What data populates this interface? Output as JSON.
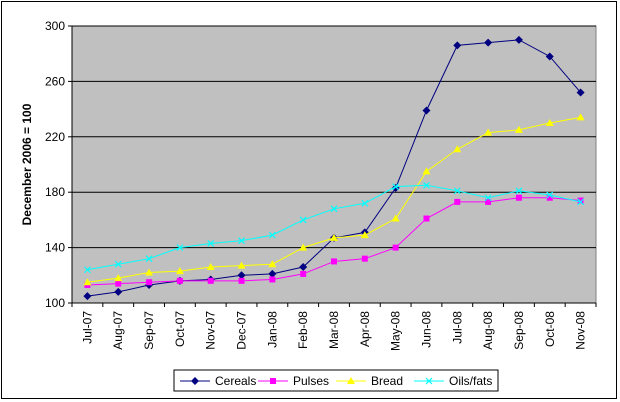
{
  "chart_data": {
    "type": "line",
    "ylabel": "December 2006 = 100",
    "xlabel": "",
    "title": "",
    "ylim": [
      100,
      300
    ],
    "yticks": [
      100,
      140,
      180,
      220,
      260,
      300
    ],
    "grid": "horizontal",
    "legend_position": "bottom",
    "plot_background": "#c0c0c0",
    "categories": [
      "Jul-07",
      "Aug-07",
      "Sep-07",
      "Oct-07",
      "Nov-07",
      "Dec-07",
      "Jan-08",
      "Feb-08",
      "Mar-08",
      "Apr-08",
      "May-08",
      "Jun-08",
      "Jul-08",
      "Aug-08",
      "Sep-08",
      "Oct-08",
      "Nov-08"
    ],
    "series": [
      {
        "name": "Cereals",
        "color": "#000080",
        "marker": "diamond",
        "values": [
          105,
          108,
          113,
          116,
          117,
          120,
          121,
          126,
          147,
          151,
          183,
          239,
          286,
          288,
          290,
          278,
          252
        ]
      },
      {
        "name": "Pulses",
        "color": "#ff00ff",
        "marker": "square",
        "values": [
          113,
          114,
          115,
          116,
          116,
          116,
          117,
          121,
          130,
          132,
          140,
          161,
          173,
          173,
          176,
          176,
          174
        ]
      },
      {
        "name": "Bread",
        "color": "#ffff00",
        "marker": "triangle",
        "values": [
          115,
          118,
          122,
          123,
          126,
          127,
          128,
          140,
          147,
          149,
          161,
          195,
          211,
          223,
          225,
          230,
          234
        ]
      },
      {
        "name": "Oils/fats",
        "color": "#00ffff",
        "marker": "x",
        "values": [
          124,
          128,
          132,
          140,
          143,
          145,
          149,
          160,
          168,
          172,
          184,
          185,
          181,
          176,
          181,
          178,
          173
        ]
      }
    ]
  }
}
